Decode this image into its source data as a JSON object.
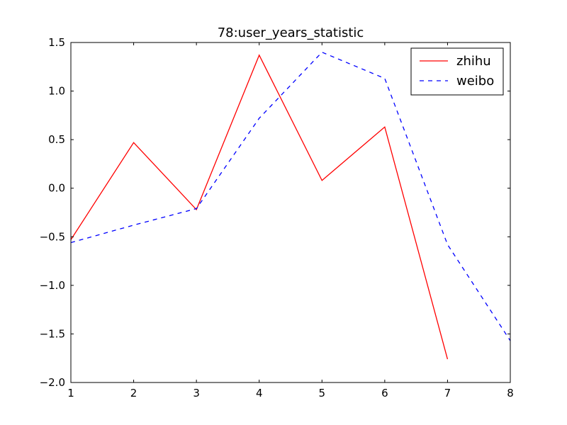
{
  "chart_data": {
    "type": "line",
    "title": "78:user_years_statistic",
    "xlabel": "",
    "ylabel": "",
    "xlim": [
      1,
      8
    ],
    "ylim": [
      -2.0,
      1.5
    ],
    "x_ticks": [
      1,
      2,
      3,
      4,
      5,
      6,
      7,
      8
    ],
    "x_tick_labels": [
      "1",
      "2",
      "3",
      "4",
      "5",
      "6",
      "7",
      "8"
    ],
    "y_ticks": [
      1.5,
      1.0,
      0.5,
      0.0,
      -0.5,
      -1.0,
      -1.5,
      -2.0
    ],
    "y_tick_labels": [
      "1.5",
      "1.0",
      "0.5",
      "0.0",
      "−0.5",
      "−1.0",
      "−1.5",
      "−2.0"
    ],
    "grid": false,
    "legend_position": "top-right",
    "series": [
      {
        "name": "zhihu",
        "color": "#ff0000",
        "linestyle": "solid",
        "x": [
          1,
          2,
          3,
          4,
          5,
          6,
          7
        ],
        "y": [
          -0.53,
          0.47,
          -0.22,
          1.37,
          0.08,
          0.63,
          -1.76
        ]
      },
      {
        "name": "weibo",
        "color": "#0000ff",
        "linestyle": "dashed",
        "x": [
          1,
          2,
          3,
          4,
          5,
          6,
          7,
          8
        ],
        "y": [
          -0.56,
          -0.38,
          -0.21,
          0.72,
          1.4,
          1.13,
          -0.58,
          -1.57
        ]
      }
    ]
  }
}
